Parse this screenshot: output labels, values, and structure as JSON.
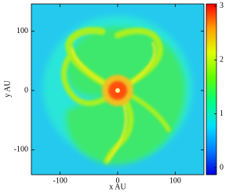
{
  "chart_data": {
    "type": "heatmap",
    "x_label": "x AU",
    "y_label": "y AU",
    "xlim": [
      -150,
      150
    ],
    "xticks": [
      -100,
      0,
      100
    ],
    "ylim": [
      -142,
      146
    ],
    "yticks": [
      -100,
      0,
      100
    ],
    "clim": [
      -0.13,
      3.04
    ],
    "cticks": [
      0,
      1,
      2,
      3
    ],
    "colormap": [
      "#0000e0",
      "#0080ff",
      "#00e0ff",
      "#00ff80",
      "#60ff00",
      "#e0ff00",
      "#ffa000",
      "#ff0000"
    ]
  }
}
